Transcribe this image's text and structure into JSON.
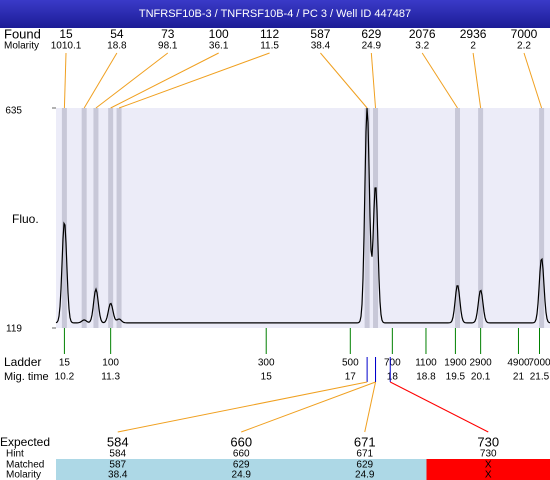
{
  "title": "TNFRSF10B-3 / TNFRSF10B-4 / PC 3 / Well ID 447487",
  "chart_data": {
    "type": "electropherogram",
    "found_label": "Found",
    "molarity_label": "Molarity",
    "ylabel": "Fluo.",
    "ylim": [
      119,
      635
    ],
    "yticks": [
      119,
      635
    ],
    "xlim": [
      10.0,
      21.75
    ],
    "baseline": 131,
    "peaks": [
      {
        "size": 15,
        "molarity": 1010.1,
        "time": 10.2,
        "height": 368
      },
      {
        "size": 54,
        "molarity": 18.8,
        "time": 10.67,
        "height": 138
      },
      {
        "size": 73,
        "molarity": 98.1,
        "time": 10.95,
        "height": 210
      },
      {
        "size": 100,
        "molarity": 36.1,
        "time": 11.3,
        "height": 177
      },
      {
        "size": 112,
        "molarity": 11.5,
        "time": 11.5,
        "height": 140
      },
      {
        "size": 587,
        "molarity": 38.4,
        "time": 17.4,
        "height": 635
      },
      {
        "size": 629,
        "molarity": 24.9,
        "time": 17.6,
        "height": 454
      },
      {
        "size": 2076,
        "molarity": 3.2,
        "time": 19.55,
        "height": 220
      },
      {
        "size": 2936,
        "molarity": 2,
        "time": 20.1,
        "height": 208
      },
      {
        "size": 7000,
        "molarity": 2.2,
        "time": 21.55,
        "height": 283
      }
    ],
    "ladder_label": "Ladder",
    "time_label": "Mig. time",
    "ladder": [
      {
        "size": 15,
        "time": 10.2
      },
      {
        "size": 100,
        "time": 11.3
      },
      {
        "size": 300,
        "time": 15
      },
      {
        "size": 500,
        "time": 17
      },
      {
        "size": 700,
        "time": 18
      },
      {
        "size": 1100,
        "time": 18.8
      },
      {
        "size": 1900,
        "time": 19.5
      },
      {
        "size": 2900,
        "time": 20.1
      },
      {
        "size": 4900,
        "time": 21
      },
      {
        "size": 7000,
        "time": 21.5
      }
    ]
  },
  "table": {
    "row_labels": [
      "Expected",
      "Hint",
      "Matched",
      "Molarity"
    ],
    "columns": [
      {
        "expected": 584,
        "hint": 584,
        "matched": 587,
        "molarity": 38.4
      },
      {
        "expected": 660,
        "hint": 660,
        "matched": 629,
        "molarity": 24.9
      },
      {
        "expected": 671,
        "hint": 671,
        "matched": 629,
        "molarity": 24.9
      },
      {
        "expected": 730,
        "hint": 730,
        "matched": "X",
        "molarity": "X"
      }
    ]
  }
}
